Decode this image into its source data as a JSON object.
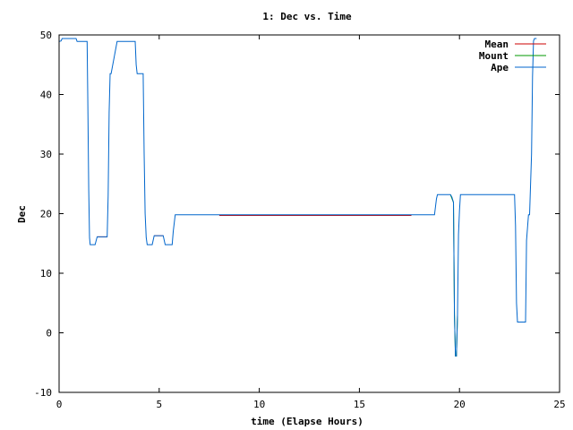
{
  "chart_data": {
    "type": "line",
    "title": "1: Dec vs. Time",
    "xlabel": "time (Elapse Hours)",
    "ylabel": "Dec",
    "xlim": [
      0,
      25
    ],
    "ylim": [
      -10,
      50
    ],
    "xticks": [
      0,
      5,
      10,
      15,
      20,
      25
    ],
    "yticks": [
      -10,
      0,
      10,
      20,
      30,
      40,
      50
    ],
    "grid": false,
    "legend_position": "top-right",
    "series": [
      {
        "name": "Mean",
        "color": "#cc0000",
        "segments": [
          {
            "x": [
              0.15,
              0.8
            ],
            "y": [
              49.4,
              49.4
            ]
          },
          {
            "x": [
              1.9,
              2.4
            ],
            "y": [
              16.1,
              16.1
            ]
          },
          {
            "x": [
              4.75,
              5.2
            ],
            "y": [
              16.3,
              16.3
            ]
          },
          {
            "x": [
              8.0,
              17.6
            ],
            "y": [
              19.7,
              19.7
            ]
          }
        ]
      },
      {
        "name": "Mount",
        "color": "#009900",
        "segments": [
          {
            "x": [
              19.55,
              19.7,
              19.75,
              19.8,
              19.85,
              19.9
            ],
            "y": [
              23.2,
              21.9,
              3.0,
              -3.9,
              -3.9,
              3.0
            ]
          }
        ]
      },
      {
        "name": "Ape",
        "color": "#0066cc",
        "segments": [
          {
            "x": [
              0.0,
              0.1,
              0.15,
              0.85,
              0.9,
              1.4,
              1.43,
              1.48,
              1.52,
              1.55,
              1.8,
              1.9,
              2.4,
              2.45,
              2.5,
              2.55,
              2.6,
              2.9,
              2.95,
              3.8,
              3.85,
              3.9,
              3.95,
              4.2,
              4.25,
              4.3,
              4.35,
              4.4,
              4.65,
              4.75,
              5.2,
              5.3,
              5.65,
              5.7,
              5.8,
              18.75,
              18.85,
              18.9,
              19.5,
              19.55,
              19.62,
              19.7,
              19.75,
              19.8,
              19.85,
              19.9,
              19.95,
              20.0,
              20.05,
              20.1,
              22.75,
              22.8,
              22.85,
              22.9,
              23.3,
              23.35,
              23.45,
              23.5,
              23.6,
              23.65,
              23.7,
              23.75,
              23.85
            ],
            "y": [
              48.9,
              49.0,
              49.4,
              49.4,
              48.9,
              48.9,
              40.0,
              24.0,
              16.0,
              14.8,
              14.8,
              16.1,
              16.1,
              23.0,
              37.0,
              43.5,
              43.5,
              48.9,
              48.9,
              48.9,
              45.0,
              43.5,
              43.5,
              43.5,
              30.0,
              20.0,
              16.0,
              14.8,
              14.8,
              16.3,
              16.3,
              14.8,
              14.8,
              17.0,
              19.8,
              19.8,
              22.5,
              23.2,
              23.2,
              23.2,
              22.8,
              21.9,
              3.0,
              -3.9,
              -3.9,
              3.0,
              16.5,
              20.5,
              23.2,
              23.2,
              23.2,
              18.0,
              5.0,
              1.8,
              1.8,
              15.5,
              19.8,
              19.8,
              30.0,
              43.0,
              49.0,
              49.4,
              49.4
            ]
          }
        ]
      }
    ]
  }
}
